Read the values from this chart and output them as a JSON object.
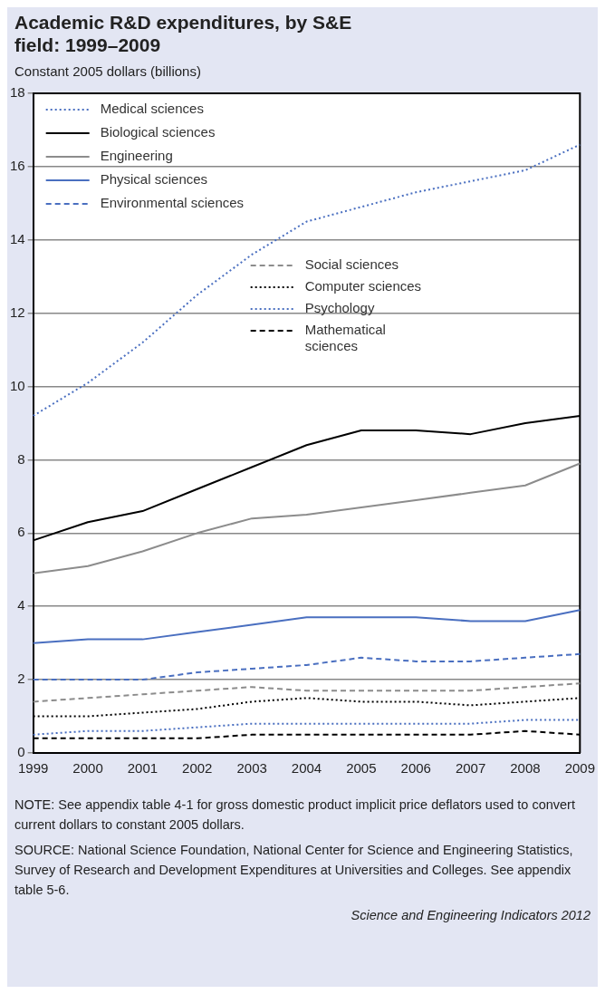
{
  "chart_data": {
    "type": "line",
    "title": "Academic R&D expenditures, by S&E field: 1999–2009",
    "ylabel": "Constant 2005 dollars (billions)",
    "categories": [
      "1999",
      "2000",
      "2001",
      "2002",
      "2003",
      "2004",
      "2005",
      "2006",
      "2007",
      "2008",
      "2009"
    ],
    "series": [
      {
        "name": "Medical sciences",
        "color": "#4a6fc0",
        "line_style": "dotted",
        "values": [
          9.2,
          10.1,
          11.2,
          12.5,
          13.6,
          14.5,
          14.9,
          15.3,
          15.6,
          15.9,
          16.6
        ]
      },
      {
        "name": "Biological sciences",
        "color": "#000000",
        "line_style": "solid",
        "values": [
          5.8,
          6.3,
          6.6,
          7.2,
          7.8,
          8.4,
          8.8,
          8.8,
          8.7,
          9.0,
          9.2
        ]
      },
      {
        "name": "Engineering",
        "color": "#8c8c8c",
        "line_style": "solid",
        "values": [
          4.9,
          5.1,
          5.5,
          6.0,
          6.4,
          6.5,
          6.7,
          6.9,
          7.1,
          7.3,
          7.9
        ]
      },
      {
        "name": "Physical sciences",
        "color": "#4a6fc0",
        "line_style": "solid",
        "values": [
          3.0,
          3.1,
          3.1,
          3.3,
          3.5,
          3.7,
          3.7,
          3.7,
          3.6,
          3.6,
          3.9
        ]
      },
      {
        "name": "Environmental sciences",
        "color": "#4a6fc0",
        "line_style": "dashed",
        "values": [
          2.0,
          2.0,
          2.0,
          2.2,
          2.3,
          2.4,
          2.6,
          2.5,
          2.5,
          2.6,
          2.7
        ]
      },
      {
        "name": "Social sciences",
        "color": "#8c8c8c",
        "line_style": "dashed",
        "values": [
          1.4,
          1.5,
          1.6,
          1.7,
          1.8,
          1.7,
          1.7,
          1.7,
          1.7,
          1.8,
          1.9
        ]
      },
      {
        "name": "Computer sciences",
        "color": "#000000",
        "line_style": "dotted",
        "values": [
          1.0,
          1.0,
          1.1,
          1.2,
          1.4,
          1.5,
          1.4,
          1.4,
          1.3,
          1.4,
          1.5
        ]
      },
      {
        "name": "Psychology",
        "color": "#4a6fc0",
        "line_style": "dotted",
        "values": [
          0.5,
          0.6,
          0.6,
          0.7,
          0.8,
          0.8,
          0.8,
          0.8,
          0.8,
          0.9,
          0.9
        ]
      },
      {
        "name": "Mathematical sciences",
        "color": "#000000",
        "line_style": "dashed",
        "values": [
          0.4,
          0.4,
          0.4,
          0.4,
          0.5,
          0.5,
          0.5,
          0.5,
          0.5,
          0.6,
          0.5
        ]
      }
    ],
    "ylim": [
      0,
      18
    ],
    "yticks": [
      0,
      2,
      4,
      6,
      8,
      10,
      12,
      14,
      16,
      18
    ],
    "grid": "y",
    "legend": "top left",
    "marker": "none",
    "annotations": [
      "NOTE: See appendix table 4-1 for gross domestic product implicit price deflators used to convert current dollars to constant 2005 dollars.",
      "SOURCE: National Science Foundation, National Center for Science and Engineering Statistics, Survey of Research and Development Expenditures at Universities and Colleges. See appendix table 5-6.",
      "Science and Engineering Indicators 2012"
    ]
  }
}
